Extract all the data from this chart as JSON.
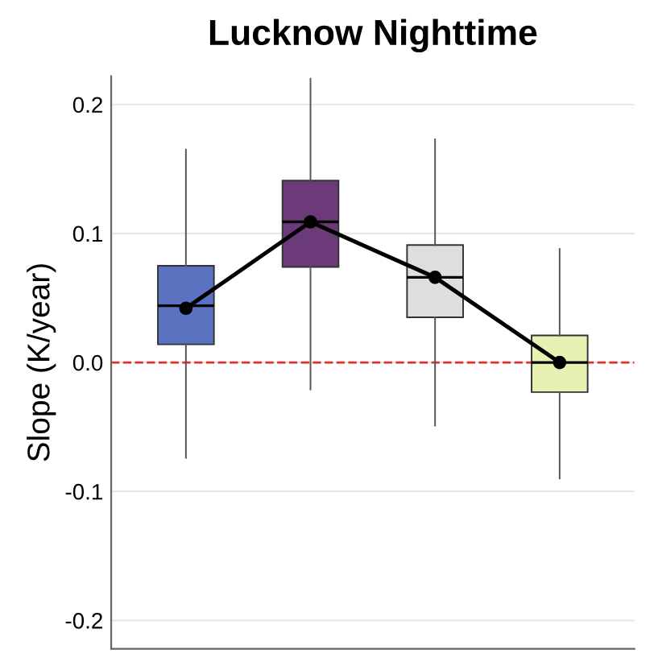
{
  "chart_data": {
    "type": "box",
    "title": "Lucknow Nighttime",
    "ylabel": "Slope (K/year)",
    "categories": [
      null,
      null,
      null,
      null
    ],
    "boxes": [
      {
        "low": -0.074,
        "q1": 0.014,
        "median": 0.044,
        "q3": 0.075,
        "high": 0.165
      },
      {
        "low": -0.021,
        "q1": 0.074,
        "median": 0.109,
        "q3": 0.141,
        "high": 0.22
      },
      {
        "low": -0.049,
        "q1": 0.035,
        "median": 0.066,
        "q3": 0.091,
        "high": 0.173
      },
      {
        "low": -0.09,
        "q1": -0.023,
        "median": 0.0,
        "q3": 0.021,
        "high": 0.088
      }
    ],
    "colors": [
      "#5a72c0",
      "#6c3a78",
      "#dedede",
      "#e6f2b2"
    ],
    "series": [
      {
        "type": "line",
        "color": "#000000",
        "values": [
          0.042,
          0.109,
          0.066,
          0.0
        ],
        "marker": "circle",
        "line_style": "solid"
      }
    ],
    "ylim": [
      -0.222,
      0.222
    ],
    "yticks": [
      -0.2,
      -0.1,
      {
        "value": 0,
        "label": "0.0"
      },
      0.1,
      0.2
    ],
    "grid": "y",
    "tick_labels": "y",
    "ref_lines": [
      {
        "axis": "y",
        "value": 0.0,
        "color": "#e03030",
        "line_style": "dashed"
      }
    ]
  }
}
